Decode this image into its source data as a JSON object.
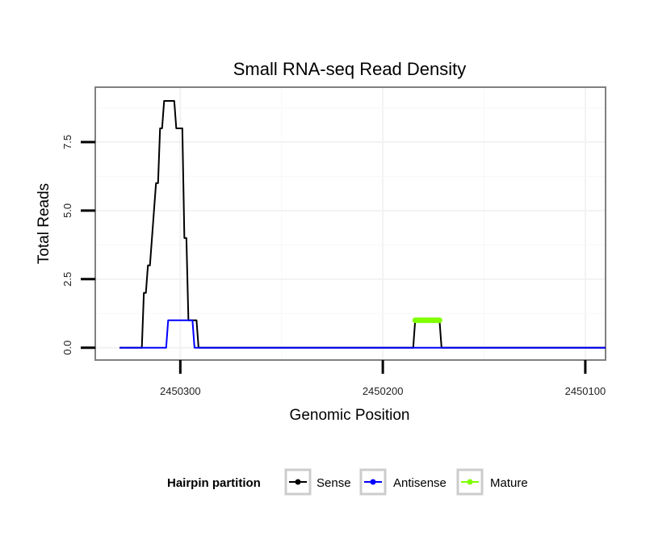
{
  "chart_data": {
    "type": "line",
    "title": "Small RNA-seq Read Density",
    "xlabel": "Genomic Position",
    "ylabel": "Total Reads",
    "x_reversed": true,
    "xlim": [
      2450090,
      2450342
    ],
    "ylim": [
      -0.45,
      9.5
    ],
    "x_ticks": [
      2450300,
      2450200,
      2450100
    ],
    "x_tick_labels": [
      "2450300",
      "2450200",
      "2450100"
    ],
    "y_ticks": [
      0,
      2.5,
      5,
      7.5
    ],
    "y_tick_labels": [
      "0.0",
      "2.5",
      "5.0",
      "7.5"
    ],
    "grid": true,
    "legend": {
      "title": "Hairpin partition",
      "position": "bottom",
      "entries": [
        {
          "label": "Sense",
          "color": "#000000"
        },
        {
          "label": "Antisense",
          "color": "#0000ff"
        },
        {
          "label": "Mature",
          "color": "#7fff00"
        }
      ]
    },
    "series": [
      {
        "name": "Sense",
        "color": "#000000",
        "points": [
          [
            2450330,
            0
          ],
          [
            2450319,
            0
          ],
          [
            2450318,
            2
          ],
          [
            2450317,
            2
          ],
          [
            2450316,
            3
          ],
          [
            2450315,
            3
          ],
          [
            2450314,
            4
          ],
          [
            2450313,
            5
          ],
          [
            2450312,
            6
          ],
          [
            2450311,
            6
          ],
          [
            2450310,
            8
          ],
          [
            2450309,
            8
          ],
          [
            2450308,
            9
          ],
          [
            2450303,
            9
          ],
          [
            2450302,
            8
          ],
          [
            2450299,
            8
          ],
          [
            2450298,
            4
          ],
          [
            2450297,
            4
          ],
          [
            2450296,
            1
          ],
          [
            2450292,
            1
          ],
          [
            2450291,
            0
          ],
          [
            2450185,
            0
          ],
          [
            2450184,
            1
          ],
          [
            2450172,
            1
          ],
          [
            2450171,
            0
          ],
          [
            2450090,
            0
          ]
        ]
      },
      {
        "name": "Antisense",
        "color": "#0000ff",
        "points": [
          [
            2450330,
            0
          ],
          [
            2450307,
            0
          ],
          [
            2450306,
            1
          ],
          [
            2450294,
            1
          ],
          [
            2450293,
            0
          ],
          [
            2450090,
            0
          ]
        ]
      },
      {
        "name": "Mature",
        "color": "#7fff00",
        "points": [
          [
            2450184,
            1
          ],
          [
            2450183,
            1
          ],
          [
            2450182,
            1
          ],
          [
            2450181,
            1
          ],
          [
            2450180,
            1
          ],
          [
            2450179,
            1
          ],
          [
            2450178,
            1
          ],
          [
            2450177,
            1
          ],
          [
            2450176,
            1
          ],
          [
            2450175,
            1
          ],
          [
            2450174,
            1
          ],
          [
            2450173,
            1
          ],
          [
            2450172,
            1
          ]
        ]
      }
    ]
  }
}
